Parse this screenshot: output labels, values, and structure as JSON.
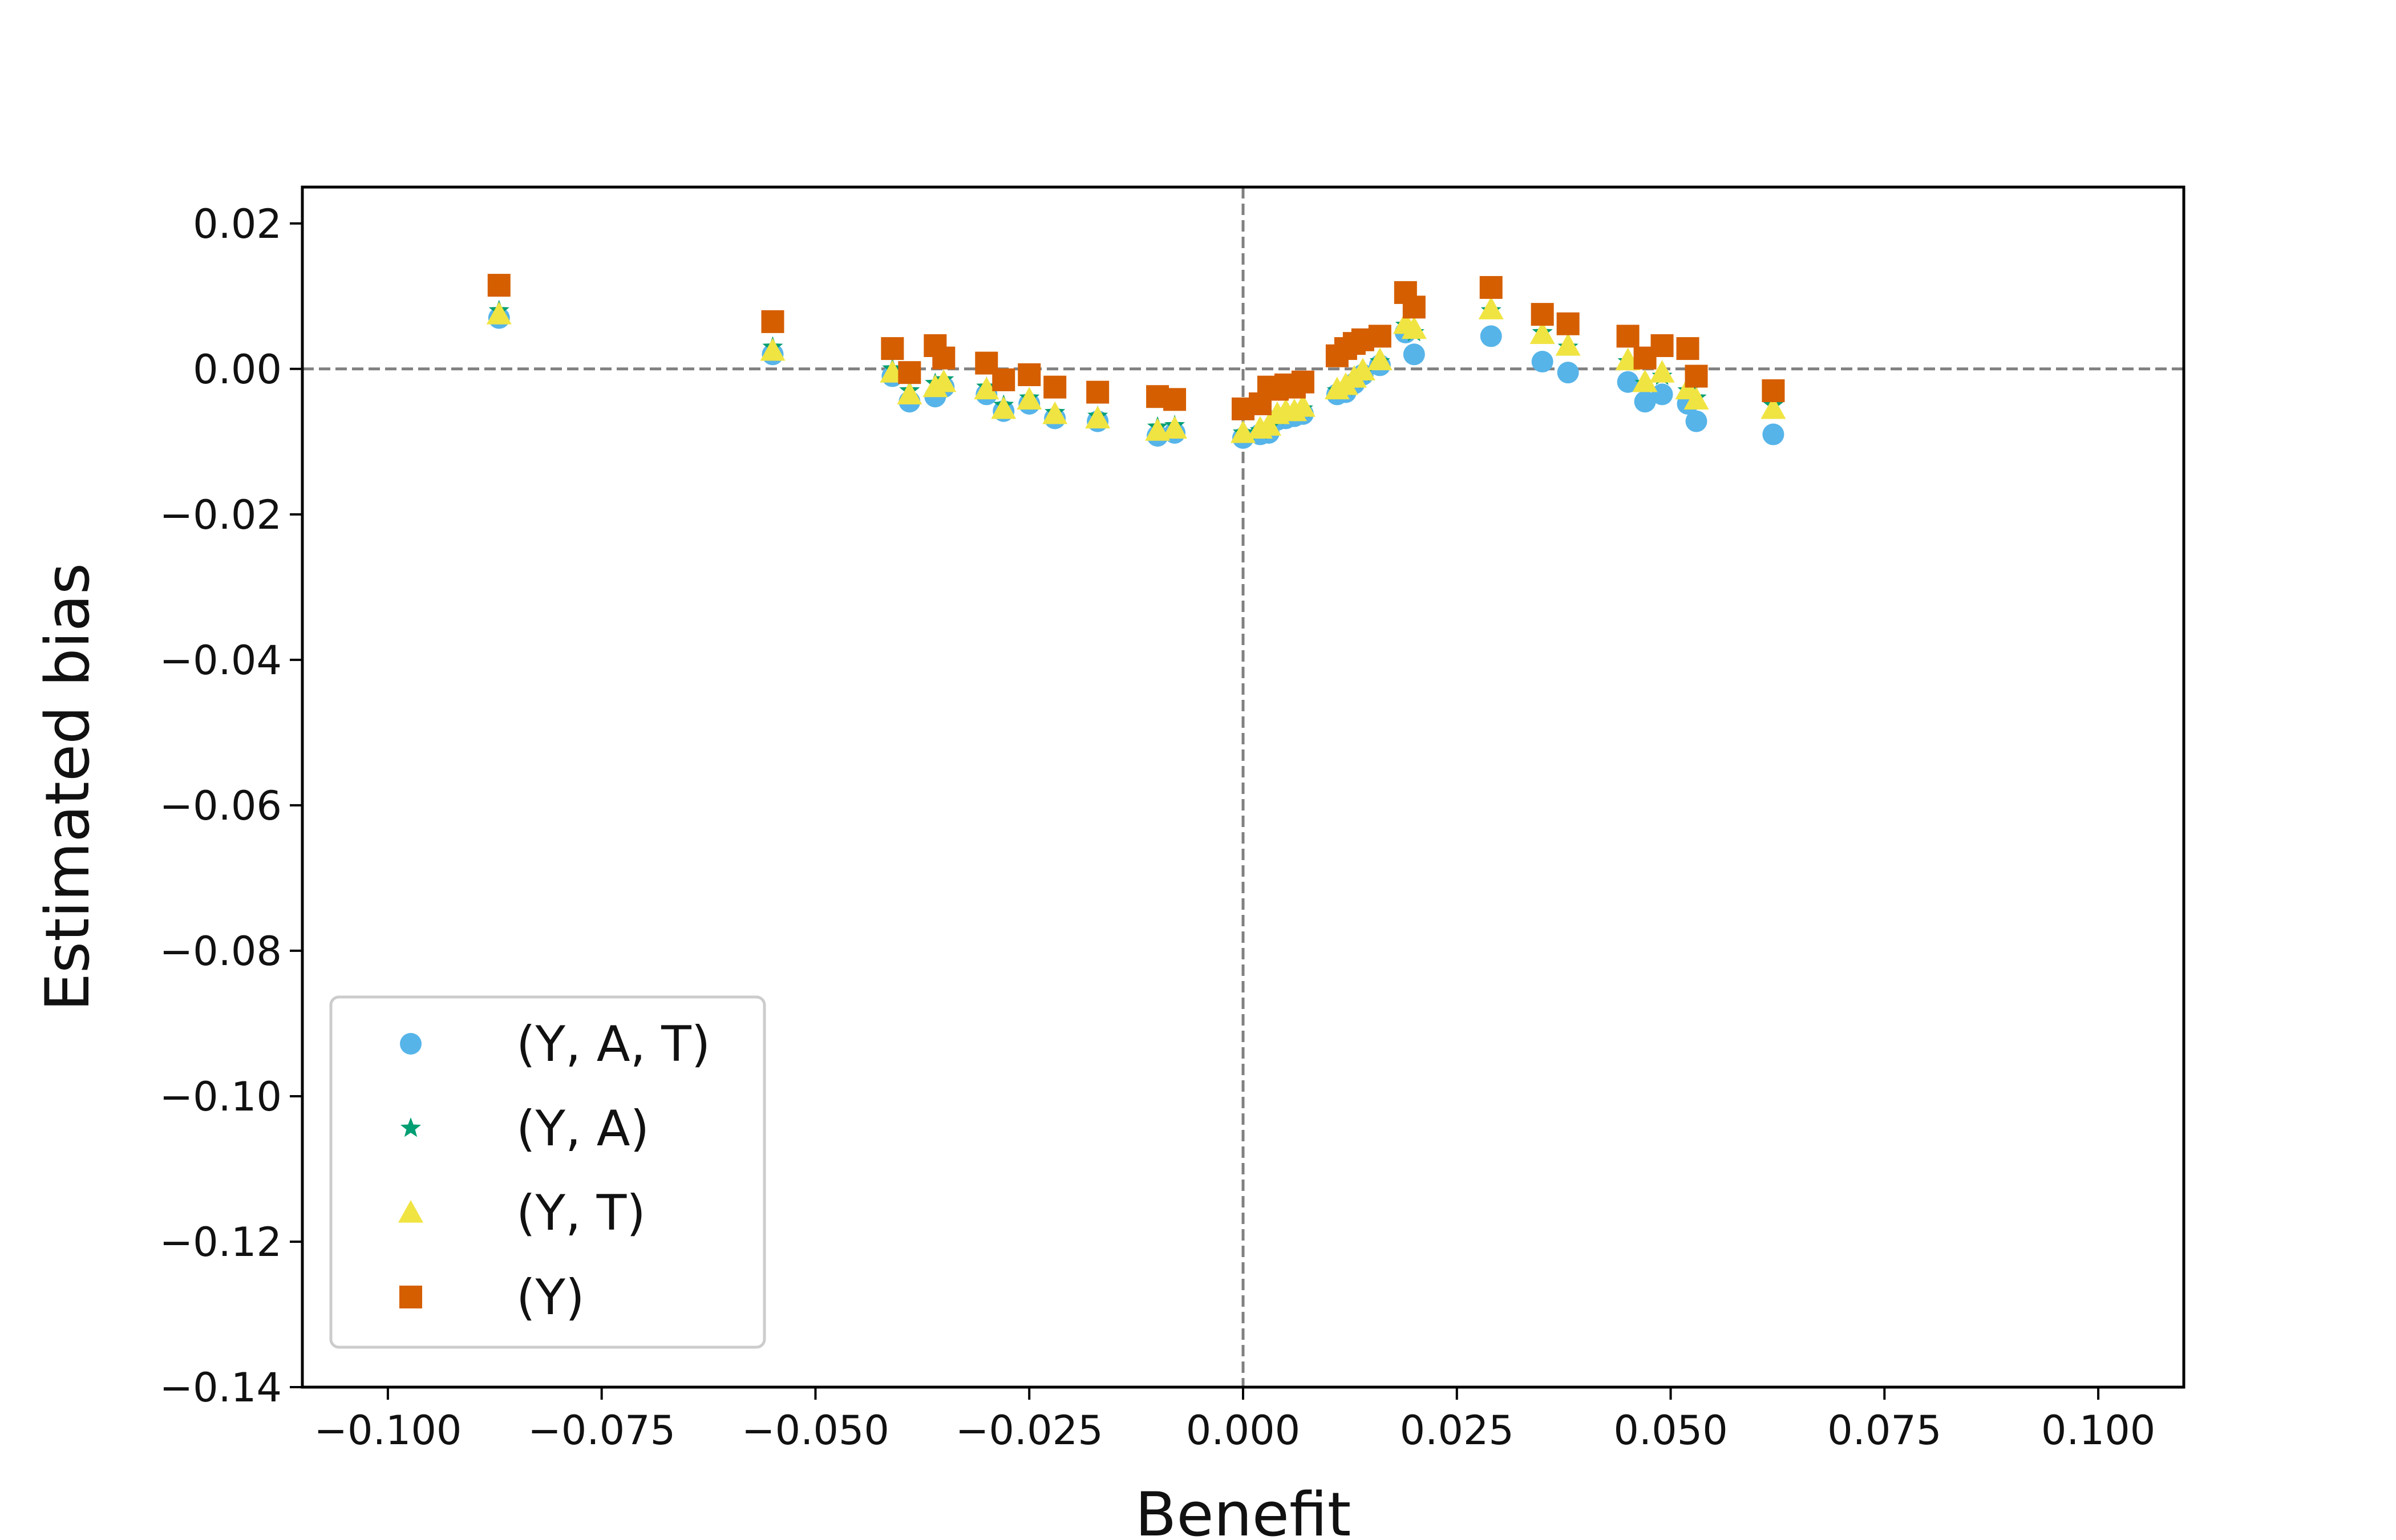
{
  "chart_data": {
    "type": "scatter",
    "title": "",
    "xlabel": "Benefit",
    "ylabel": "Estimated bias",
    "xlim": [
      -0.11,
      0.11
    ],
    "ylim": [
      -0.14,
      0.025
    ],
    "xticks": [
      -0.1,
      -0.075,
      -0.05,
      -0.025,
      0.0,
      0.025,
      0.05,
      0.075,
      0.1
    ],
    "xtick_labels": [
      "−0.100",
      "−0.075",
      "−0.050",
      "−0.025",
      "0.000",
      "0.025",
      "0.050",
      "0.075",
      "0.100"
    ],
    "yticks": [
      0.02,
      0.0,
      -0.02,
      -0.04,
      -0.06,
      -0.08,
      -0.1,
      -0.12,
      -0.14
    ],
    "ytick_labels": [
      "0.02",
      "0.00",
      "−0.02",
      "−0.04",
      "−0.06",
      "−0.08",
      "−0.10",
      "−0.12",
      "−0.14"
    ],
    "reference_lines": {
      "x": 0,
      "y": 0
    },
    "legend_position": "lower-left",
    "grid": false,
    "x": [
      -0.087,
      -0.055,
      -0.041,
      -0.039,
      -0.036,
      -0.035,
      -0.03,
      -0.028,
      -0.025,
      -0.022,
      -0.017,
      -0.01,
      -0.008,
      0.0,
      0.002,
      0.003,
      0.004,
      0.005,
      0.006,
      0.007,
      0.011,
      0.012,
      0.013,
      0.014,
      0.016,
      0.019,
      0.02,
      0.029,
      0.035,
      0.038,
      0.045,
      0.047,
      0.049,
      0.052,
      0.053,
      0.062
    ],
    "series": [
      {
        "name": "(Y, A, T)",
        "marker": "circle",
        "color": "#56B4E9",
        "values": [
          0.007,
          0.002,
          -0.001,
          -0.0045,
          -0.0038,
          -0.0025,
          -0.0035,
          -0.0058,
          -0.0048,
          -0.0068,
          -0.0072,
          -0.0092,
          -0.0088,
          -0.0095,
          -0.009,
          -0.0088,
          -0.007,
          -0.0068,
          -0.0065,
          -0.0062,
          -0.0035,
          -0.0032,
          -0.002,
          -0.0008,
          0.0005,
          0.005,
          0.002,
          0.0045,
          0.001,
          -0.0005,
          -0.0018,
          -0.0045,
          -0.0035,
          -0.0048,
          -0.0072,
          -0.009
        ]
      },
      {
        "name": "(Y, A)",
        "marker": "star",
        "color": "#009E73",
        "values": [
          0.008,
          0.003,
          0.0,
          -0.003,
          -0.002,
          -0.0015,
          -0.0025,
          -0.005,
          -0.004,
          -0.006,
          -0.0065,
          -0.008,
          -0.0078,
          -0.0088,
          -0.0085,
          -0.008,
          -0.0065,
          -0.006,
          -0.006,
          -0.0055,
          -0.003,
          -0.0025,
          -0.0015,
          -0.0005,
          0.001,
          0.006,
          0.005,
          0.008,
          0.005,
          0.003,
          0.001,
          -0.002,
          -0.001,
          -0.003,
          -0.004,
          -0.005
        ]
      },
      {
        "name": "(Y, T)",
        "marker": "triangle",
        "color": "#F0E442",
        "values": [
          0.0075,
          0.0025,
          -0.0005,
          -0.0035,
          -0.0025,
          -0.0018,
          -0.0028,
          -0.0055,
          -0.0042,
          -0.0062,
          -0.0068,
          -0.0085,
          -0.0082,
          -0.0088,
          -0.0082,
          -0.0078,
          -0.0062,
          -0.0058,
          -0.0058,
          -0.0052,
          -0.0028,
          -0.0022,
          -0.0012,
          -0.0002,
          0.0012,
          0.0062,
          0.0055,
          0.0082,
          0.0048,
          0.0032,
          0.0012,
          -0.0018,
          -0.0005,
          -0.0028,
          -0.0042,
          -0.0055
        ]
      },
      {
        "name": "(Y)",
        "marker": "square",
        "color": "#D55E00",
        "values": [
          0.0115,
          0.0065,
          0.0028,
          -0.0005,
          0.0032,
          0.0015,
          0.0008,
          -0.0015,
          -0.0008,
          -0.0025,
          -0.0032,
          -0.0038,
          -0.0042,
          -0.0055,
          -0.0048,
          -0.0025,
          -0.0028,
          -0.0022,
          -0.0025,
          -0.0018,
          0.0018,
          0.0028,
          0.0035,
          0.004,
          0.0045,
          0.0105,
          0.0085,
          0.0112,
          0.0075,
          0.0062,
          0.0045,
          0.0015,
          0.0032,
          0.0028,
          -0.001,
          -0.003
        ]
      }
    ]
  }
}
